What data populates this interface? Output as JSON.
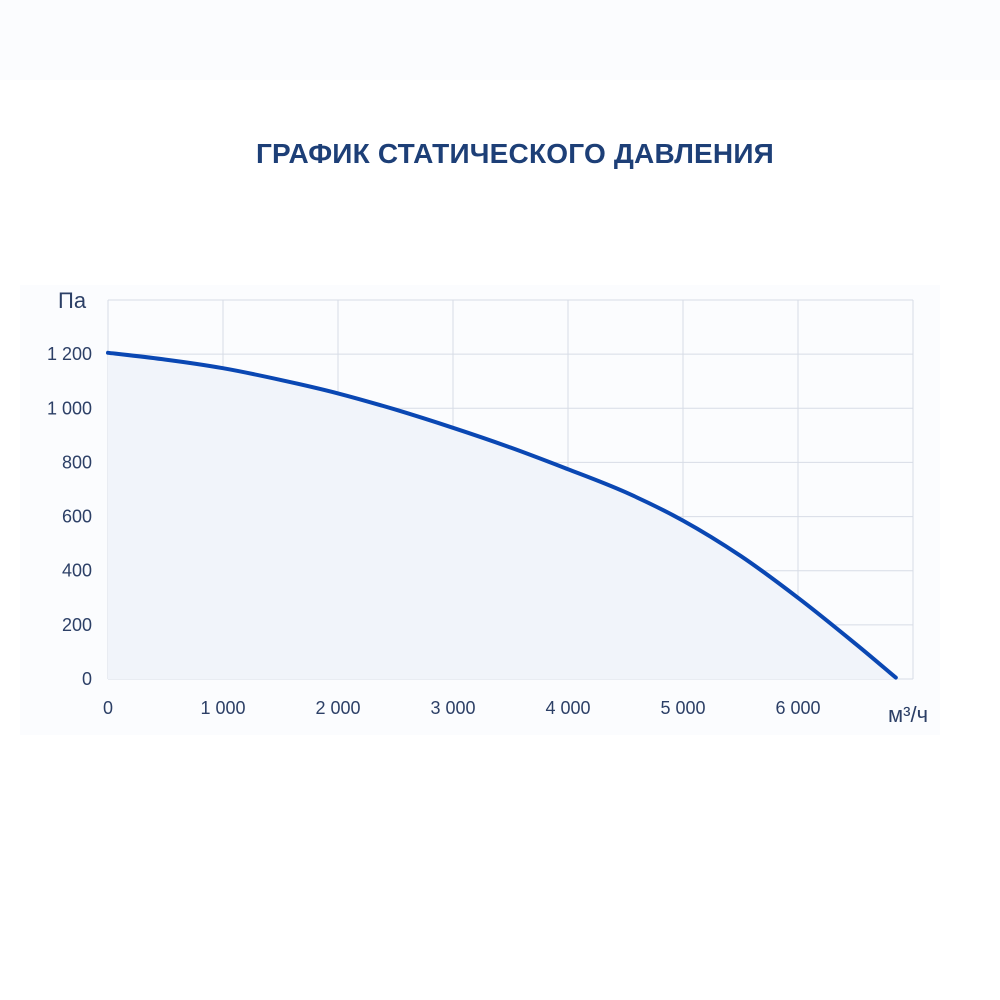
{
  "chart_data": {
    "type": "area",
    "title": "ГРАФИК СТАТИЧЕСКОГО ДАВЛЕНИЯ",
    "ylabel": "Па",
    "xlabel": "м³/ч",
    "xlim": [
      0,
      7000
    ],
    "ylim": [
      0,
      1400
    ],
    "x_ticks": [
      0,
      1000,
      2000,
      3000,
      4000,
      5000,
      6000
    ],
    "x_tick_labels": [
      "0",
      "1 000",
      "2 000",
      "3 000",
      "4 000",
      "5 000",
      "6 000"
    ],
    "y_ticks": [
      0,
      200,
      400,
      600,
      800,
      1000,
      1200
    ],
    "y_tick_labels": [
      "0",
      "200",
      "400",
      "600",
      "800",
      "1 000",
      "1 200"
    ],
    "grid": true,
    "series": [
      {
        "x": [
          0,
          500,
          1000,
          1500,
          2000,
          2500,
          3000,
          3500,
          4000,
          4500,
          5000,
          5500,
          6000,
          6500,
          6850
        ],
        "y": [
          1205,
          1180,
          1148,
          1105,
          1055,
          995,
          928,
          855,
          775,
          690,
          585,
          455,
          300,
          130,
          5
        ]
      }
    ],
    "colors": {
      "line": "#0a47b3",
      "fill": "#f1f4fa",
      "grid": "#d7dce6",
      "title": "#1d3f77",
      "text": "#2c3f66"
    }
  }
}
